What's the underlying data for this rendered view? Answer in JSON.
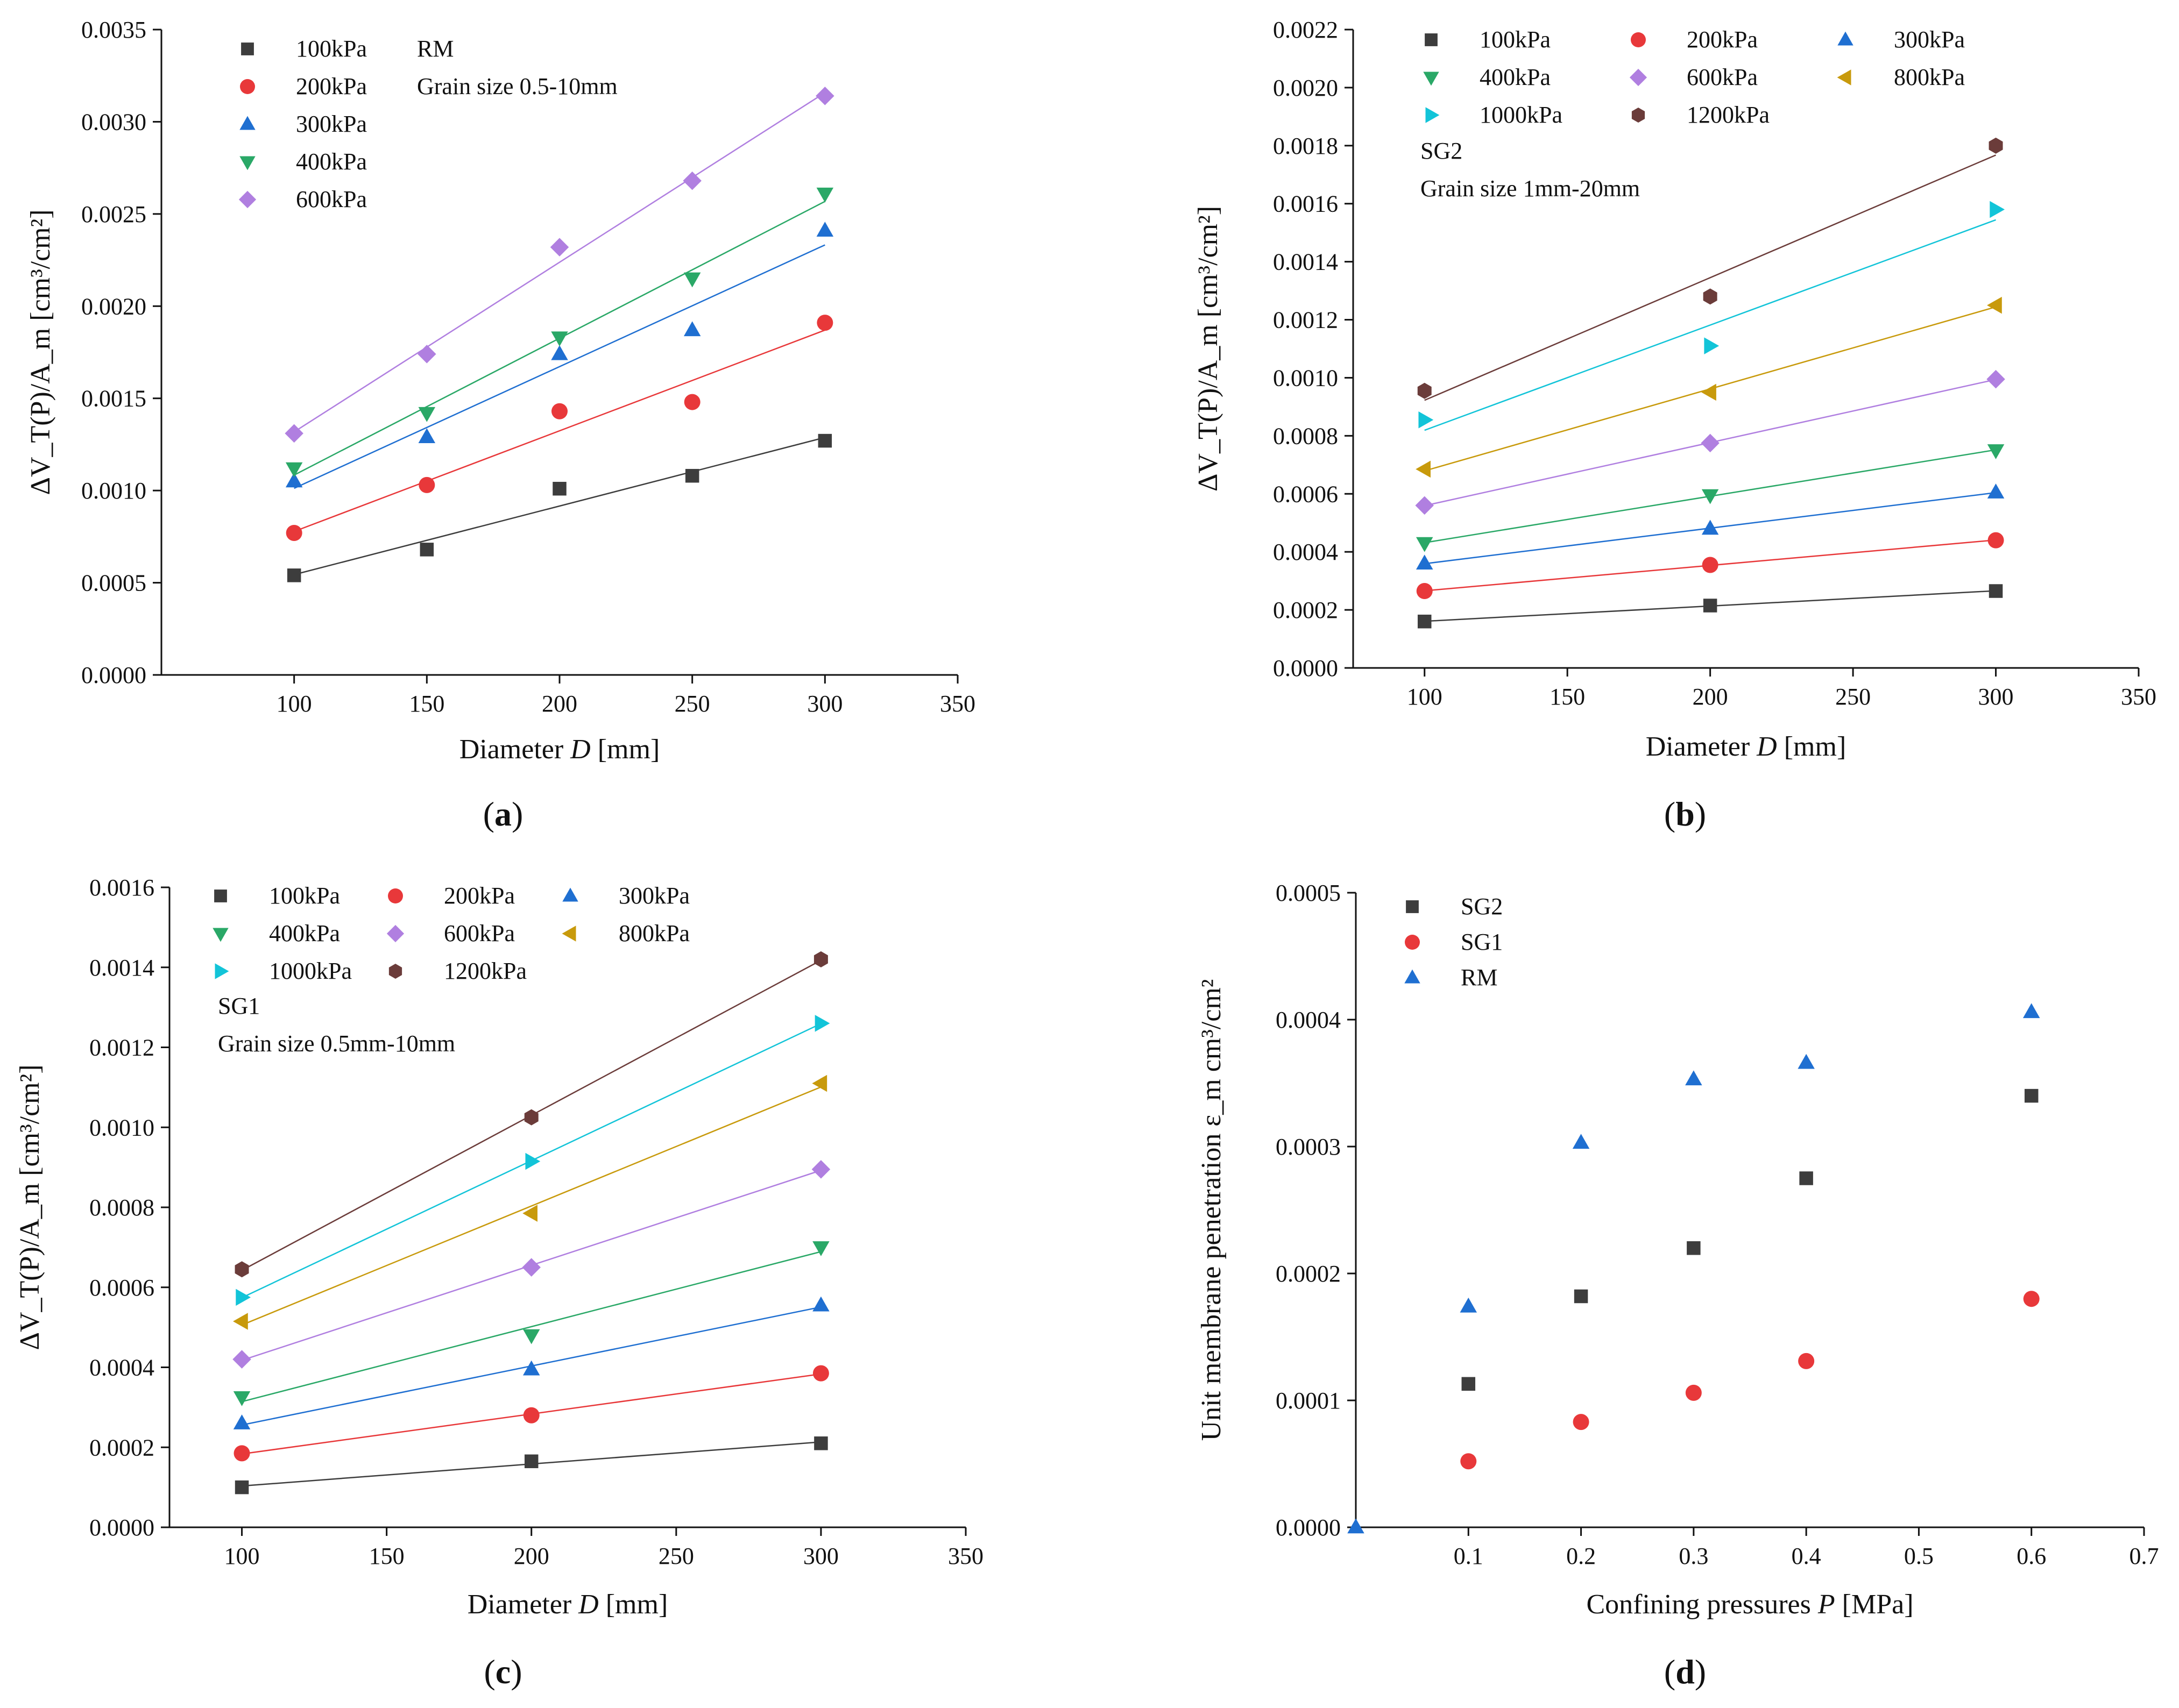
{
  "figure": {
    "colors": {
      "100kPa": "#3d3d3d",
      "200kPa": "#e8383a",
      "300kPa": "#1f6fd1",
      "400kPa": "#2aa867",
      "600kPa": "#b07fe0",
      "800kPa": "#c89a0c",
      "1000kPa": "#12c4d8",
      "1200kPa": "#6b3c3a",
      "SG2": "#3d3d3d",
      "SG1": "#e8383a",
      "RM": "#1f6fd1"
    }
  },
  "chart_data": [
    {
      "id": "a",
      "type": "scatter",
      "panel_label": "(a)",
      "panel_letter": "a",
      "xlabel": "Diameter",
      "xlabel_var": "D",
      "xlabel_unit": "[mm]",
      "ylabel": "ΔV_T(P)/A_m [cm³/cm²]",
      "xlim": [
        50,
        350
      ],
      "ylim": [
        0,
        0.0035
      ],
      "xticks": [
        100,
        150,
        200,
        250,
        300,
        350
      ],
      "yticks": [
        0.0,
        0.0005,
        0.001,
        0.0015,
        0.002,
        0.0025,
        0.003,
        0.0035
      ],
      "ytick_labels": [
        "0.0000",
        "0.0005",
        "0.0010",
        "0.0015",
        "0.0020",
        "0.0025",
        "0.0030",
        "0.0035"
      ],
      "fit_lines": true,
      "annotations": [
        "RM",
        "Grain size 0.5-10mm"
      ],
      "x": [
        100,
        150,
        200,
        250,
        300
      ],
      "series": [
        {
          "name": "100kPa",
          "marker": "square",
          "values": [
            0.00054,
            0.00068,
            0.00101,
            0.00108,
            0.00127
          ]
        },
        {
          "name": "200kPa",
          "marker": "circle",
          "values": [
            0.00077,
            0.00103,
            0.00143,
            0.00148,
            0.00191
          ]
        },
        {
          "name": "300kPa",
          "marker": "triangle-up",
          "values": [
            0.00105,
            0.00129,
            0.00174,
            0.00187,
            0.00241
          ]
        },
        {
          "name": "400kPa",
          "marker": "triangle-down",
          "values": [
            0.00112,
            0.00142,
            0.00183,
            0.00215,
            0.00261
          ]
        },
        {
          "name": "600kPa",
          "marker": "diamond",
          "values": [
            0.00131,
            0.00174,
            0.00232,
            0.00268,
            0.00314
          ]
        }
      ]
    },
    {
      "id": "b",
      "type": "scatter",
      "panel_label": "(b)",
      "panel_letter": "b",
      "xlabel": "Diameter",
      "xlabel_var": "D",
      "xlabel_unit": "[mm]",
      "ylabel": "ΔV_T(P)/A_m [cm³/cm²]",
      "xlim": [
        75,
        350
      ],
      "ylim": [
        0,
        0.0022
      ],
      "xticks": [
        100,
        150,
        200,
        250,
        300,
        350
      ],
      "yticks": [
        0.0,
        0.0002,
        0.0004,
        0.0006,
        0.0008,
        0.001,
        0.0012,
        0.0014,
        0.0016,
        0.0018,
        0.002,
        0.0022
      ],
      "ytick_labels": [
        "0.0000",
        "0.0002",
        "0.0004",
        "0.0006",
        "0.0008",
        "0.0010",
        "0.0012",
        "0.0014",
        "0.0016",
        "0.0018",
        "0.0020",
        "0.0022"
      ],
      "fit_lines": true,
      "annotations": [
        "SG2",
        "Grain size 1mm-20mm"
      ],
      "x": [
        100,
        200,
        300
      ],
      "series": [
        {
          "name": "100kPa",
          "marker": "square",
          "values": [
            0.00016,
            0.000215,
            0.000265
          ]
        },
        {
          "name": "200kPa",
          "marker": "circle",
          "values": [
            0.000265,
            0.000355,
            0.00044
          ]
        },
        {
          "name": "300kPa",
          "marker": "triangle-up",
          "values": [
            0.00036,
            0.00048,
            0.000605
          ]
        },
        {
          "name": "400kPa",
          "marker": "triangle-down",
          "values": [
            0.00043,
            0.000595,
            0.00075
          ]
        },
        {
          "name": "600kPa",
          "marker": "diamond",
          "values": [
            0.00056,
            0.000775,
            0.000995
          ]
        },
        {
          "name": "800kPa",
          "marker": "triangle-left",
          "values": [
            0.000685,
            0.00095,
            0.00125
          ]
        },
        {
          "name": "1000kPa",
          "marker": "triangle-right",
          "values": [
            0.000855,
            0.00111,
            0.00158
          ]
        },
        {
          "name": "1200kPa",
          "marker": "hexagon",
          "values": [
            0.000955,
            0.00128,
            0.0018
          ]
        }
      ]
    },
    {
      "id": "c",
      "type": "scatter",
      "panel_label": "(c)",
      "panel_letter": "c",
      "xlabel": "Diameter",
      "xlabel_var": "D",
      "xlabel_unit": "[mm]",
      "ylabel": "ΔV_T(P)/A_m [cm³/cm²]",
      "xlim": [
        75,
        350
      ],
      "ylim": [
        0,
        0.0016
      ],
      "xticks": [
        100,
        150,
        200,
        250,
        300,
        350
      ],
      "yticks": [
        0.0,
        0.0002,
        0.0004,
        0.0006,
        0.0008,
        0.001,
        0.0012,
        0.0014,
        0.0016
      ],
      "ytick_labels": [
        "0.0000",
        "0.0002",
        "0.0004",
        "0.0006",
        "0.0008",
        "0.0010",
        "0.0012",
        "0.0014",
        "0.0016"
      ],
      "fit_lines": true,
      "annotations": [
        "SG1",
        "Grain size 0.5mm-10mm"
      ],
      "x": [
        100,
        200,
        300
      ],
      "series": [
        {
          "name": "100kPa",
          "marker": "square",
          "values": [
            0.0001,
            0.000165,
            0.00021
          ]
        },
        {
          "name": "200kPa",
          "marker": "circle",
          "values": [
            0.000185,
            0.00028,
            0.000385
          ]
        },
        {
          "name": "300kPa",
          "marker": "triangle-up",
          "values": [
            0.00026,
            0.000395,
            0.000555
          ]
        },
        {
          "name": "400kPa",
          "marker": "triangle-down",
          "values": [
            0.000325,
            0.00048,
            0.0007
          ]
        },
        {
          "name": "600kPa",
          "marker": "diamond",
          "values": [
            0.00042,
            0.00065,
            0.000895
          ]
        },
        {
          "name": "800kPa",
          "marker": "triangle-left",
          "values": [
            0.000515,
            0.000785,
            0.00111
          ]
        },
        {
          "name": "1000kPa",
          "marker": "triangle-right",
          "values": [
            0.000575,
            0.000915,
            0.00126
          ]
        },
        {
          "name": "1200kPa",
          "marker": "hexagon",
          "values": [
            0.000645,
            0.001025,
            0.00142
          ]
        }
      ]
    },
    {
      "id": "d",
      "type": "scatter",
      "panel_label": "(d)",
      "panel_letter": "d",
      "xlabel": "Confining pressures",
      "xlabel_var": "P",
      "xlabel_unit": "[MPa]",
      "ylabel": "Unit membrane penetration ε_m cm³/cm²",
      "xlim": [
        0,
        0.7
      ],
      "ylim": [
        0,
        0.0005
      ],
      "xticks": [
        0.1,
        0.2,
        0.3,
        0.4,
        0.5,
        0.6,
        0.7
      ],
      "yticks": [
        0.0,
        0.0001,
        0.0002,
        0.0003,
        0.0004,
        0.0005
      ],
      "ytick_labels": [
        "0.0000",
        "0.0001",
        "0.0002",
        "0.0003",
        "0.0004",
        "0.0005"
      ],
      "fit_lines": false,
      "annotations": [],
      "series": [
        {
          "name": "SG2",
          "marker": "square",
          "x": [
            0.1,
            0.2,
            0.3,
            0.4,
            0.6
          ],
          "values": [
            0.000113,
            0.000182,
            0.00022,
            0.000275,
            0.00034
          ]
        },
        {
          "name": "SG1",
          "marker": "circle",
          "x": [
            0.1,
            0.2,
            0.3,
            0.4,
            0.6
          ],
          "values": [
            5.2e-05,
            8.3e-05,
            0.000106,
            0.000131,
            0.00018
          ]
        },
        {
          "name": "RM",
          "marker": "triangle-up",
          "x": [
            0.0,
            0.1,
            0.2,
            0.3,
            0.4,
            0.6
          ],
          "values": [
            0.0,
            0.000174,
            0.000303,
            0.000353,
            0.000366,
            0.000406
          ]
        }
      ]
    }
  ]
}
